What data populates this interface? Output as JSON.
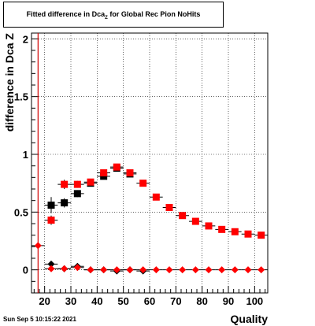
{
  "title": {
    "main": "Fitted difference in Dca",
    "sub": "Z",
    "suffix": "for Global Rec Pion NoHits"
  },
  "datestamp": "Sun Sep  5 10:15:22 2021",
  "chart_data": {
    "type": "scatter",
    "title": "Fitted difference in Dca_Z for Global Rec Pion NoHits",
    "xlabel": "Quality",
    "ylabel": "difference in Dca_Z",
    "xlim": [
      15,
      105
    ],
    "ylim": [
      -0.2,
      2.05
    ],
    "xticks": [
      20,
      30,
      40,
      50,
      60,
      70,
      80,
      90,
      100
    ],
    "yticks": [
      0,
      0.5,
      1,
      1.5,
      2
    ],
    "ytick_labels": [
      "0",
      "0.5",
      "1",
      "1.5",
      "2"
    ],
    "grid": true,
    "reference_line_x": 17.5,
    "series": [
      {
        "marker": "square",
        "color": "#000000",
        "x": [
          22.5,
          27.5,
          32.5,
          37.5,
          42.5,
          47.5,
          52.5
        ],
        "y": [
          0.56,
          0.58,
          0.66,
          0.75,
          0.81,
          0.88,
          0.83
        ],
        "yerr": [
          0.07,
          0.04,
          0.03,
          0.02,
          0.02,
          0.02,
          0.02
        ]
      },
      {
        "marker": "square",
        "color": "#ff0000",
        "x": [
          22.5,
          27.5,
          32.5,
          37.5,
          42.5,
          47.5,
          52.5,
          57.5,
          62.5,
          67.5,
          72.5,
          77.5,
          82.5,
          87.5,
          92.5,
          97.5,
          102.5
        ],
        "y": [
          0.43,
          0.74,
          0.74,
          0.76,
          0.84,
          0.89,
          0.84,
          0.75,
          0.63,
          0.54,
          0.47,
          0.42,
          0.38,
          0.35,
          0.33,
          0.31,
          0.3
        ],
        "yerr": [
          0.04,
          0.04,
          0.03,
          0.02,
          0.02,
          0.02,
          0.02,
          0.02,
          0.02,
          0.02,
          0.02,
          0.02,
          0.02,
          0.02,
          0.02,
          0.02,
          0.02
        ]
      },
      {
        "marker": "diamond",
        "color": "#000000",
        "x": [
          22.5,
          27.5,
          32.5,
          37.5,
          42.5,
          47.5,
          52.5,
          57.5
        ],
        "y": [
          0.05,
          0.01,
          0.03,
          0.0,
          0.0,
          -0.01,
          0.0,
          -0.01
        ]
      },
      {
        "marker": "diamond",
        "color": "#ff0000",
        "x": [
          17.5,
          22.5,
          27.5,
          32.5,
          37.5,
          42.5,
          47.5,
          52.5,
          57.5,
          62.5,
          67.5,
          72.5,
          77.5,
          82.5,
          87.5,
          92.5,
          97.5,
          102.5
        ],
        "y": [
          0.21,
          0.01,
          0.01,
          0.02,
          0.0,
          0.0,
          0.0,
          0.0,
          0.0,
          0.0,
          0.0,
          0.0,
          0.0,
          0.0,
          0.0,
          0.0,
          0.0,
          0.0
        ]
      }
    ]
  }
}
